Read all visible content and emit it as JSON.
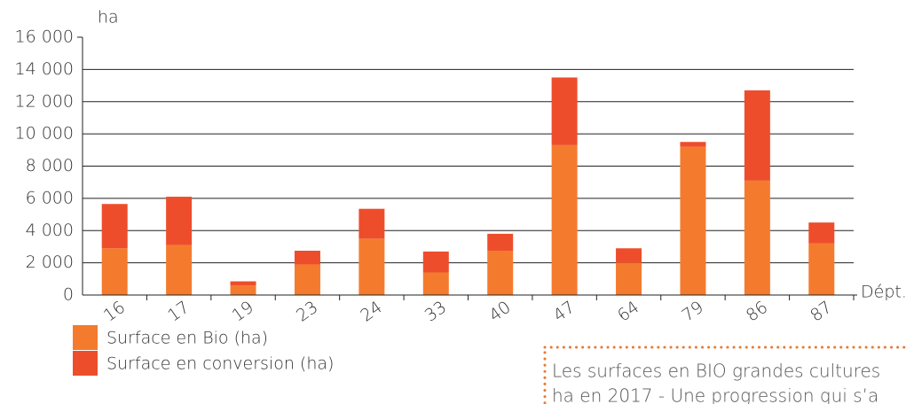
{
  "chart_data": {
    "type": "stacked_bar",
    "ylabel": "ha",
    "xlabel": "Dépt.",
    "categories": [
      "16",
      "17",
      "19",
      "23",
      "24",
      "33",
      "40",
      "47",
      "64",
      "79",
      "86",
      "87"
    ],
    "series": [
      {
        "name": "Surface en Bio (ha)",
        "color": "#f47b2e",
        "values": [
          2900,
          3100,
          600,
          1900,
          3500,
          1400,
          2750,
          9300,
          2000,
          9200,
          7100,
          3200
        ]
      },
      {
        "name": "Surface en conversion (ha)",
        "color": "#ee4d2b",
        "values": [
          2750,
          3000,
          250,
          850,
          1850,
          1300,
          1050,
          4200,
          900,
          300,
          5600,
          1300
        ]
      }
    ],
    "ylim": [
      0,
      16000
    ],
    "yticks": [
      0,
      {
        "value": 2000,
        "label": "2 000"
      },
      {
        "value": 4000,
        "label": "4 000"
      },
      {
        "value": 6000,
        "label": "6 000"
      },
      {
        "value": 8000,
        "label": "8 000"
      },
      {
        "value": 10000,
        "label": "10 000"
      },
      {
        "value": 12000,
        "label": "12 000"
      },
      {
        "value": 14000,
        "label": "14 000"
      },
      {
        "value": 16000,
        "label": "16 000"
      }
    ],
    "grid": true,
    "annotations": [
      "Les surfaces en BIO grandes cultures",
      "ha en 2017 - Une progression qui s’a"
    ]
  }
}
